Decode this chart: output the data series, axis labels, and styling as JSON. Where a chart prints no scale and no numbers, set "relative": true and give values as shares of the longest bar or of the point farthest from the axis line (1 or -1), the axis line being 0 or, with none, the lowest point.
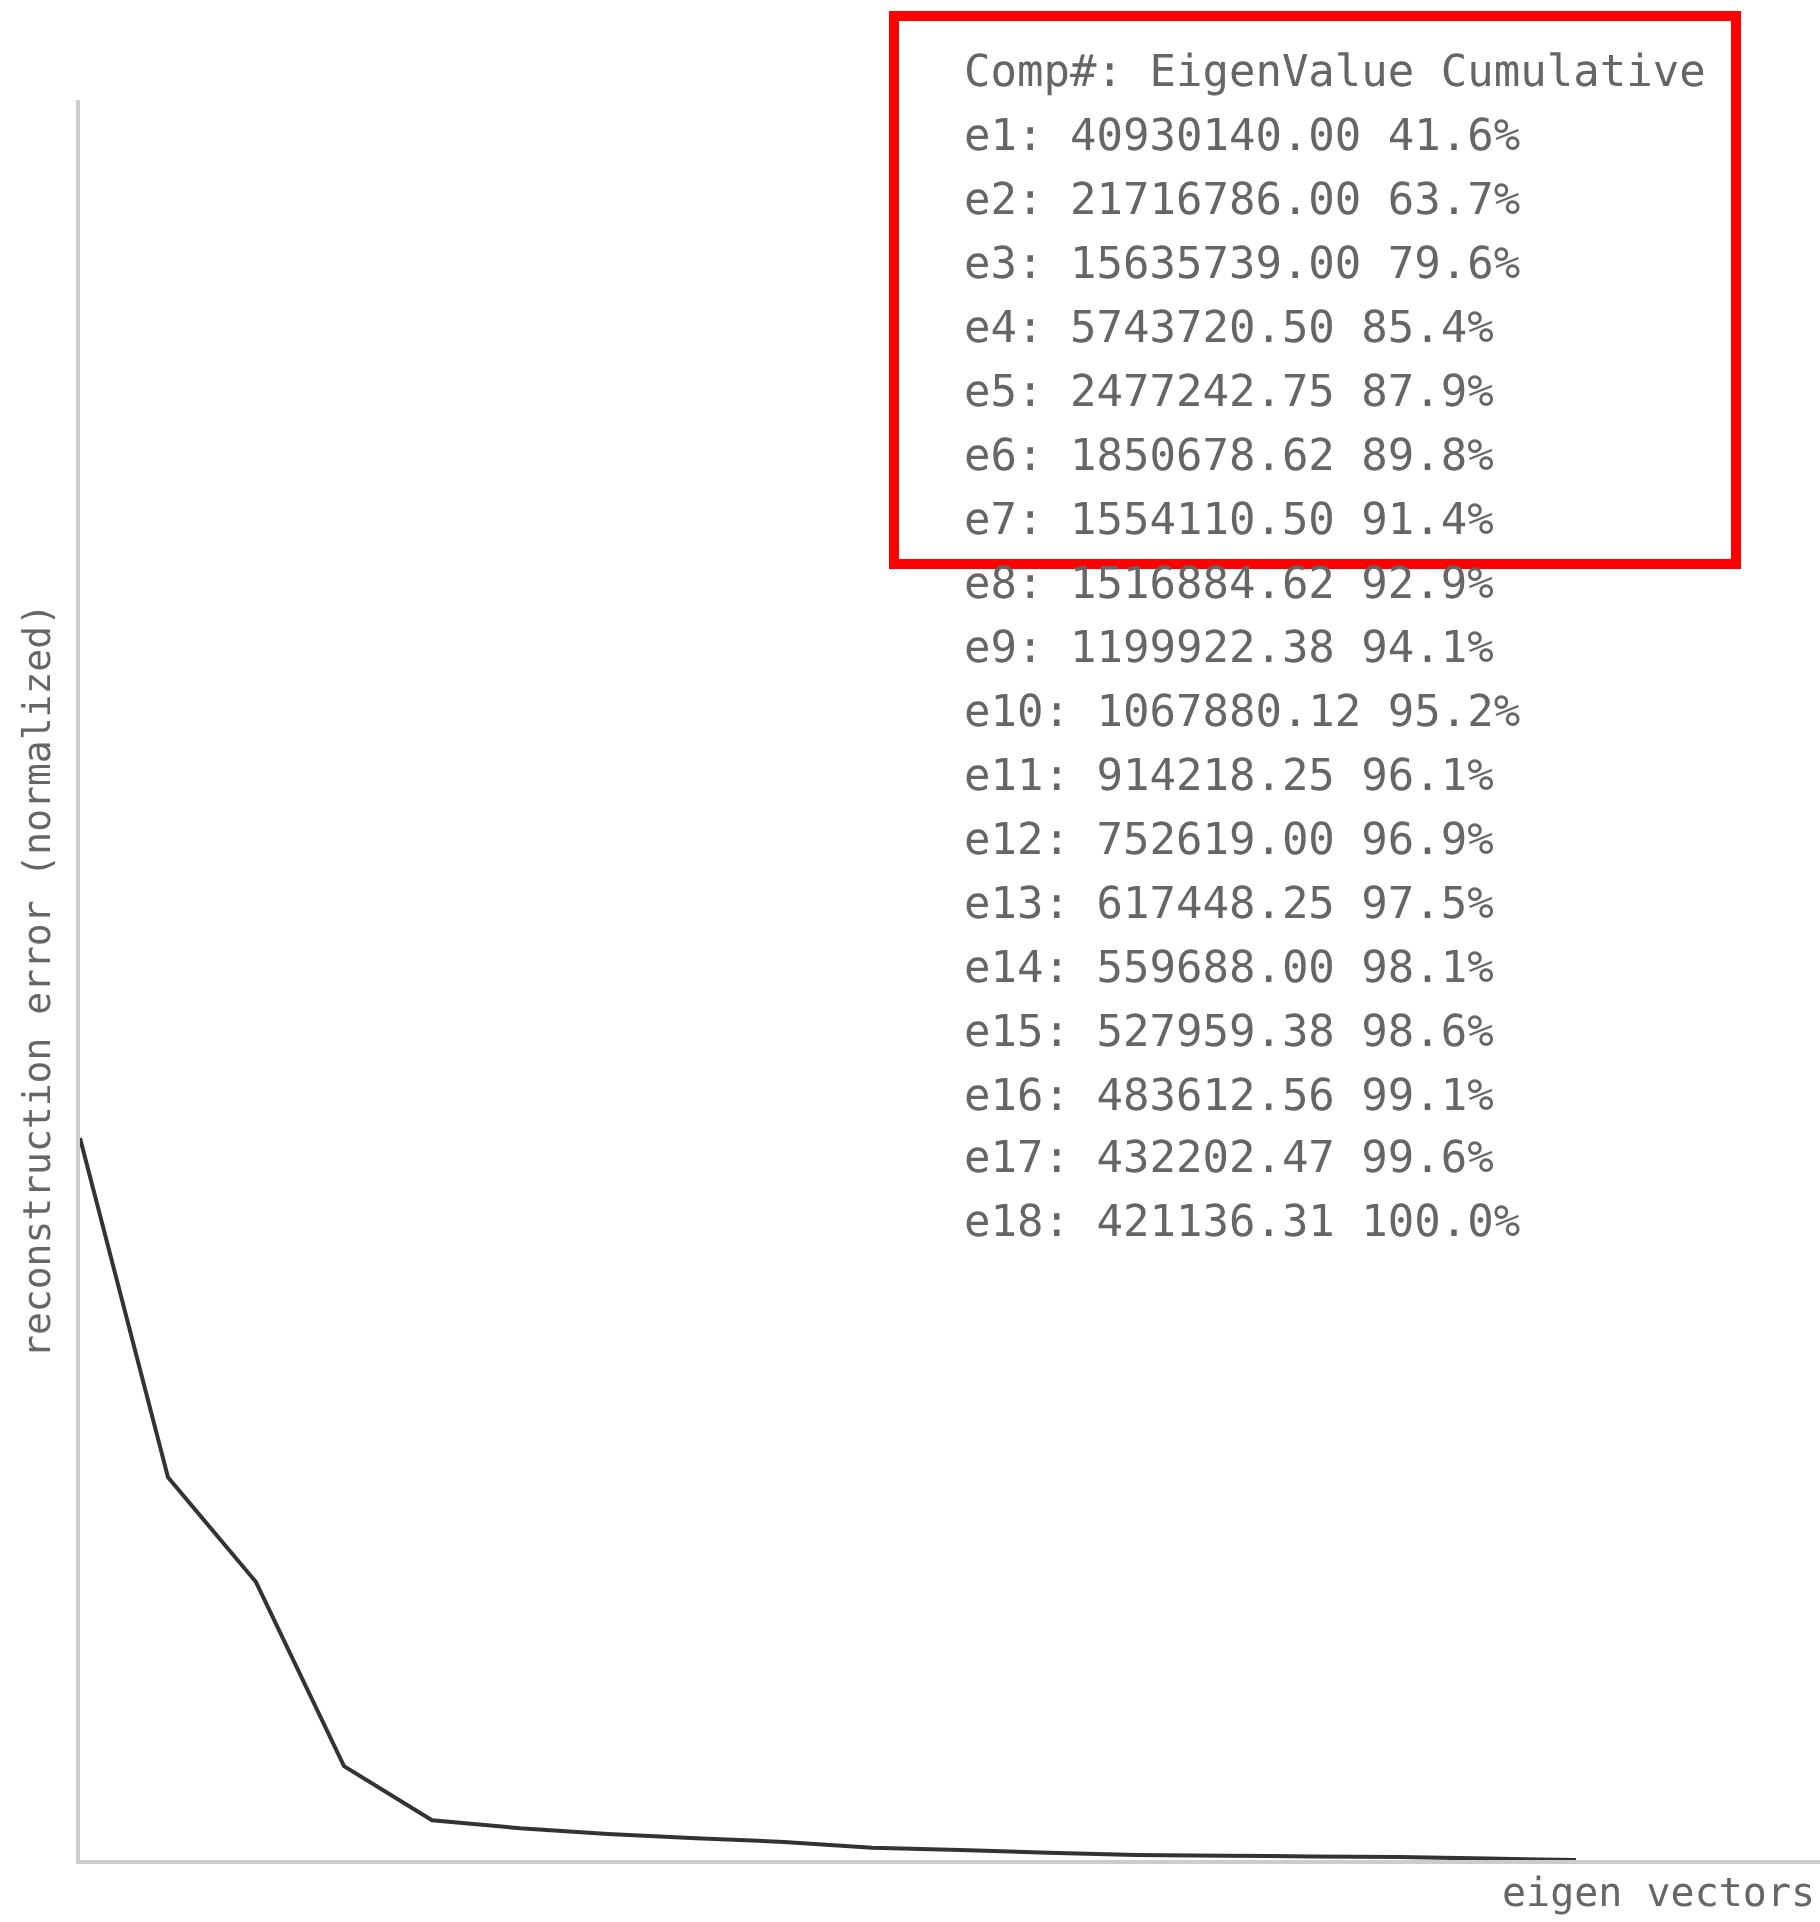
{
  "chart_data": {
    "type": "line",
    "relative": true,
    "xlabel": "eigen vectors",
    "ylabel": "reconstruction error (normalized)",
    "categories": [
      null,
      null,
      null,
      null,
      null,
      null,
      null,
      null,
      null,
      null,
      null,
      null,
      null,
      null,
      null,
      null,
      null,
      null
    ],
    "series": [
      {
        "color": "#333333",
        "values": [
          1,
          0.53,
          0.385,
          0.13,
          0.055,
          0.044,
          0.036,
          0.03,
          0.025,
          0.017,
          0.014,
          0.01,
          0.007,
          0.006,
          0.005,
          0.004,
          0.002,
          0
        ]
      }
    ],
    "annotations": [
      "Comp#: EigenValue Cumulative",
      "e1: 40930140.00 41.6%",
      "e2: 21716786.00 63.7%",
      "e3: 15635739.00 79.6%",
      "e4: 5743720.50 85.4%",
      "e5: 2477242.75 87.9%",
      "e6: 1850678.62 89.8%",
      "e7: 1554110.50 91.4%",
      "e8: 1516884.62 92.9%",
      "e9: 1199922.38 94.1%",
      "e10: 1067880.12 95.2%",
      "e11: 914218.25 96.1%",
      "e12: 752619.00 96.9%",
      "e13: 617448.25 97.5%",
      "e14: 559688.00 98.1%",
      "e15: 527959.38 98.6%",
      "e16: 483612.56 99.1%",
      "e17: 432202.47 99.6%",
      "e18: 421136.31 100.0%"
    ],
    "marker": "none",
    "line_style": "solid"
  }
}
